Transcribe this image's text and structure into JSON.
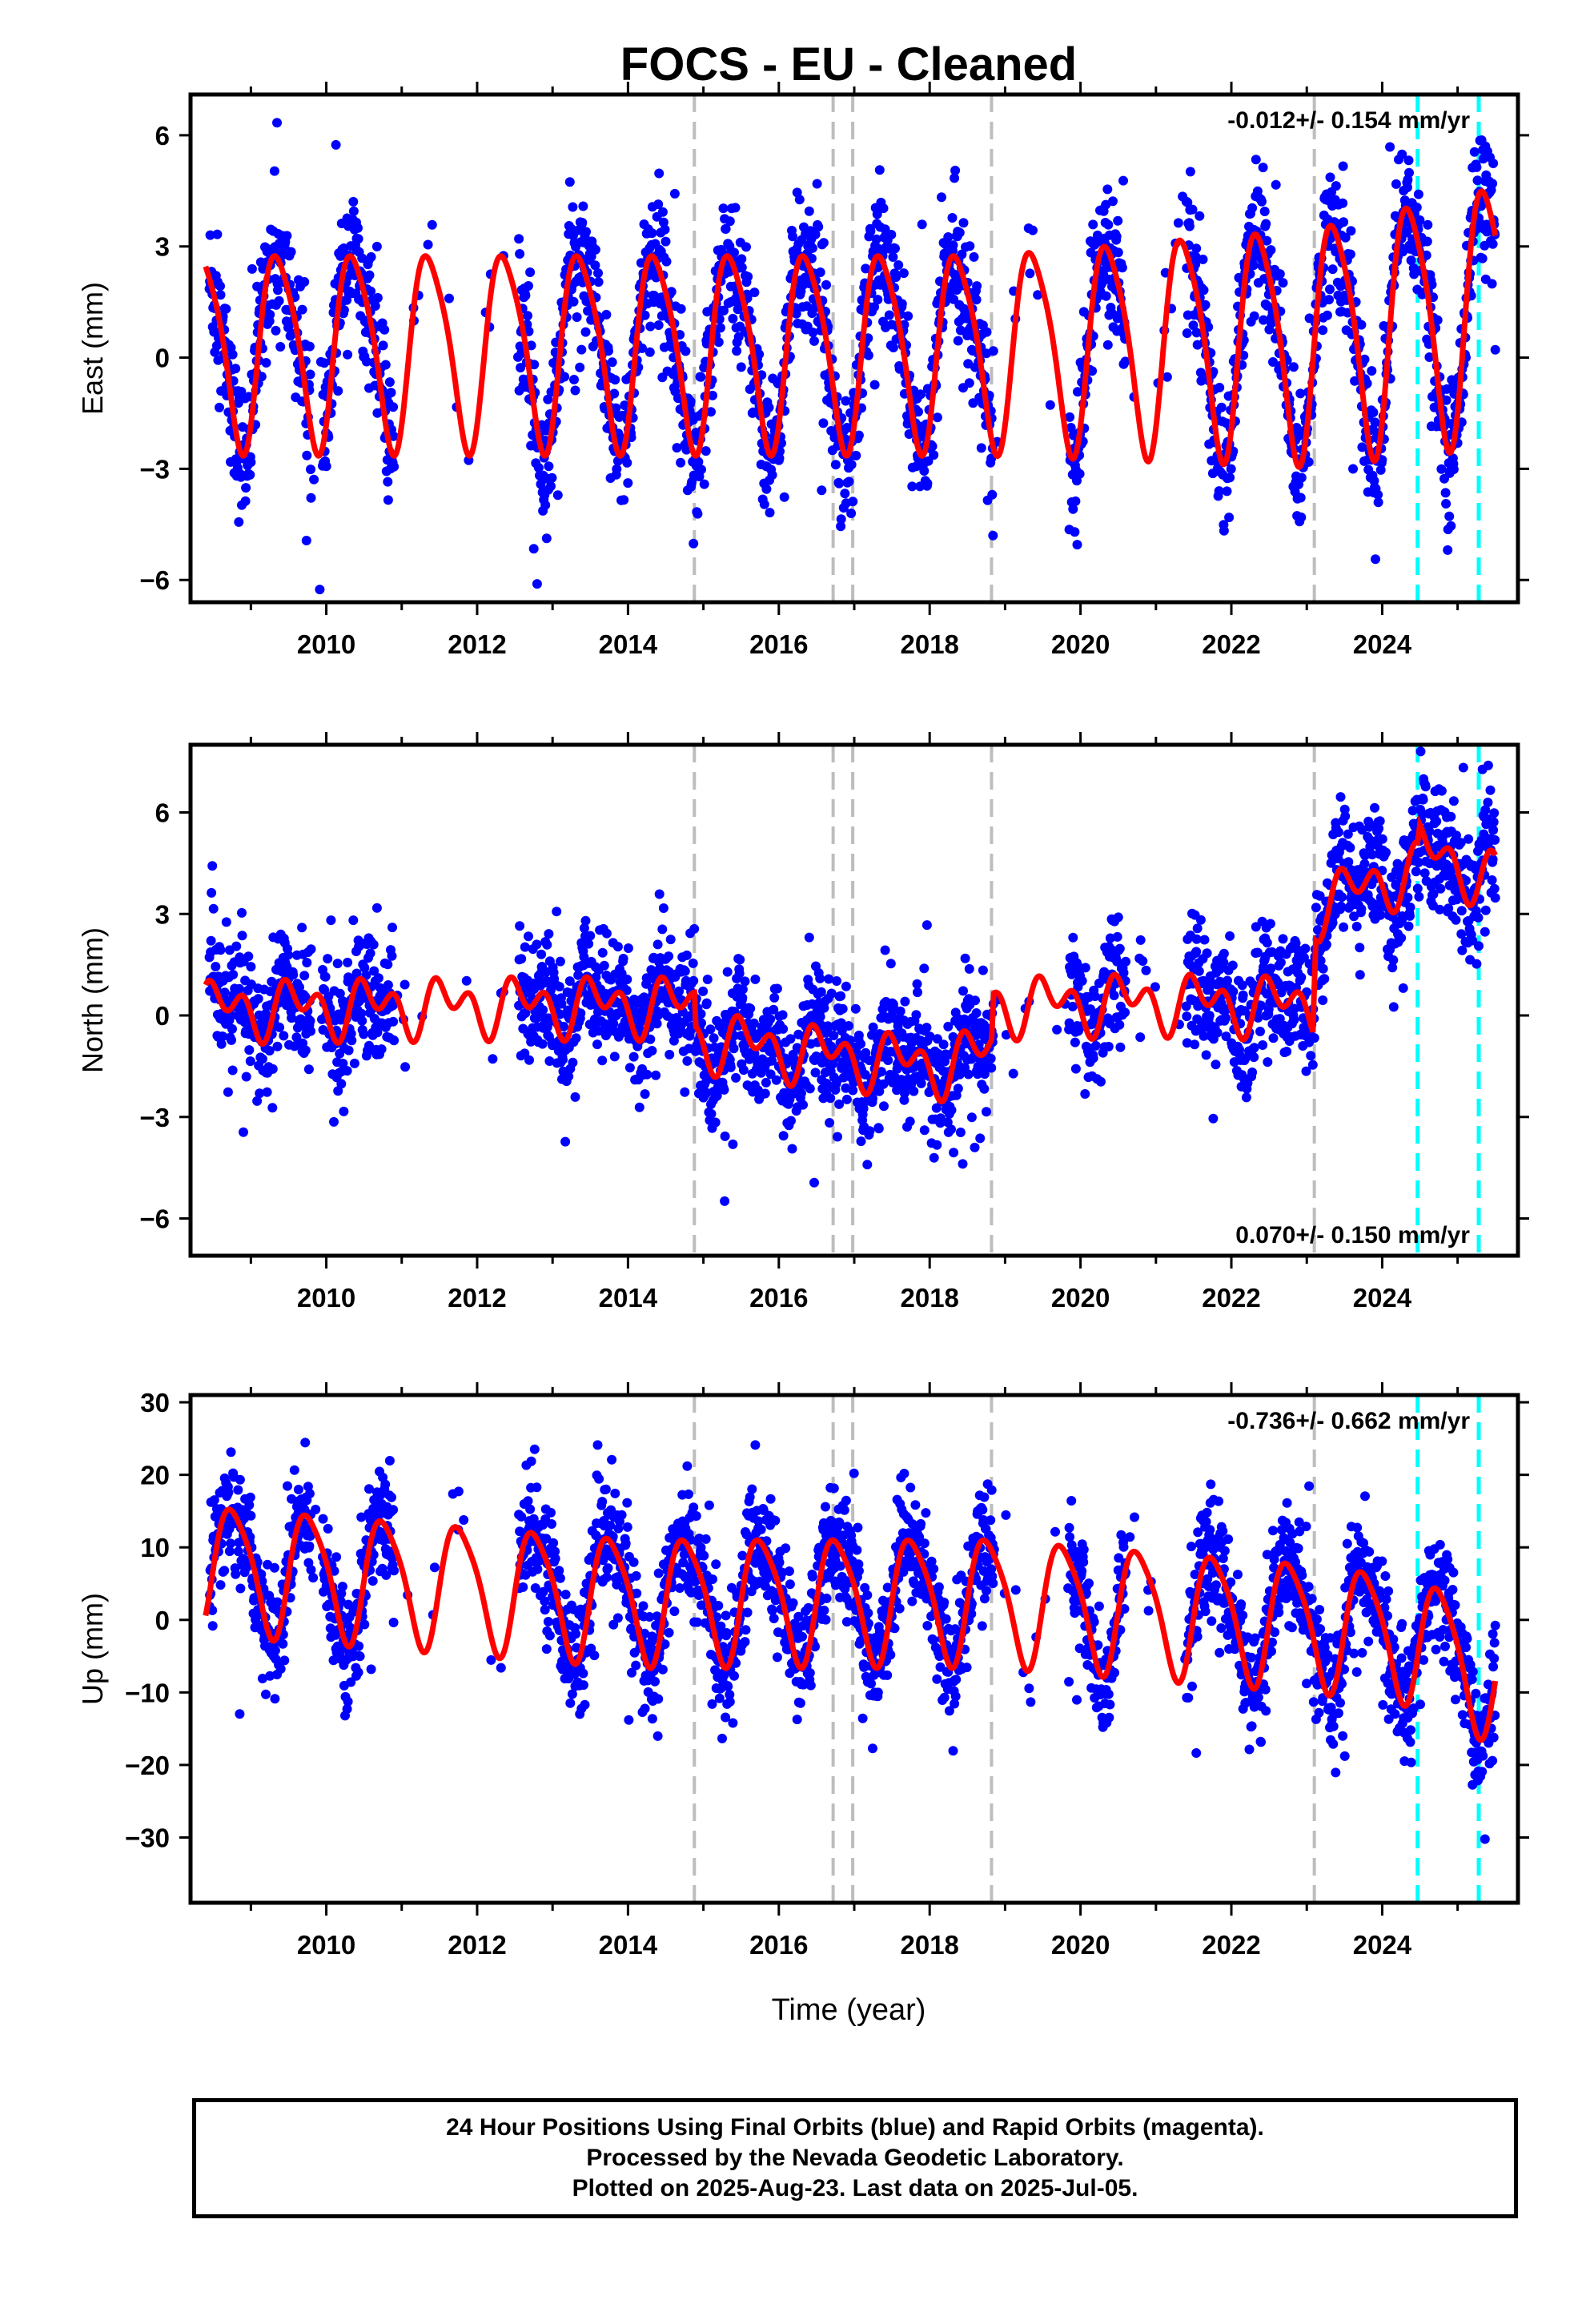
{
  "title": "FOCS  - EU - Cleaned",
  "xlabel": "Time (year)",
  "footer": {
    "line1": "24 Hour Positions Using Final Orbits (blue) and Rapid Orbits (magenta).",
    "line2": "Processed by the Nevada Geodetic Laboratory.",
    "line3": "Plotted on 2025-Aug-23. Last data on 2025-Jul-05."
  },
  "colors": {
    "data": "#0000ff",
    "model": "#ff0000",
    "equipment_change": "#bdbdbd",
    "earthquake": "#00ffff"
  },
  "chart_data": {
    "type": "scatter",
    "x_ticks": [
      2010,
      2012,
      2014,
      2016,
      2018,
      2020,
      2022,
      2024
    ],
    "xlim": [
      2008.2,
      2025.8
    ],
    "equipment_change_lines": [
      2014.88,
      2016.72,
      2016.98,
      2018.82,
      2023.1
    ],
    "earthquake_lines": [
      2024.47,
      2025.28
    ],
    "panels": [
      {
        "ylabel": "East (mm)",
        "ylim": [
          -6.6,
          7.1
        ],
        "y_ticks": [
          6,
          3,
          0,
          -3,
          -6
        ],
        "rate_label": "-0.012+/- 0.154 mm/yr",
        "rate_pos": "top-right",
        "model": {
          "amp_annual": 2.6,
          "amp_semi": 0.45,
          "phase": 0.12,
          "offsets": [
            [
              2018.85,
              0.0
            ]
          ],
          "trend": [
            [
              2008.4,
              0.3
            ],
            [
              2018.8,
              0.3
            ],
            [
              2023.1,
              0.55
            ],
            [
              2025.5,
              1.4
            ]
          ],
          "amp_growth": [
            [
              2008.4,
              1.0
            ],
            [
              2018.8,
              1.0
            ],
            [
              2025.5,
              1.3
            ]
          ]
        },
        "data": {
          "noise": 0.9,
          "spread": 1.3
        }
      },
      {
        "ylabel": "North (mm)",
        "ylim": [
          -7.1,
          8.0
        ],
        "y_ticks": [
          6,
          3,
          0,
          -3,
          -6
        ],
        "rate_label": "0.070+/- 0.150 mm/yr",
        "rate_pos": "bottom-right",
        "model": {
          "amp_annual": 0.55,
          "amp_semi": 0.55,
          "phase": 0.35,
          "trend": [
            [
              2008.4,
              0.2
            ],
            [
              2012.5,
              0.3
            ],
            [
              2014.88,
              0.3
            ],
            [
              2014.9,
              -0.7
            ],
            [
              2016.8,
              -1.2
            ],
            [
              2018.2,
              -1.5
            ],
            [
              2018.82,
              -1.0
            ],
            [
              2018.85,
              0.3
            ],
            [
              2021.0,
              0.4
            ],
            [
              2023.08,
              0.3
            ],
            [
              2023.12,
              3.2
            ],
            [
              2024.0,
              4.0
            ],
            [
              2024.47,
              4.3
            ],
            [
              2024.5,
              4.9
            ],
            [
              2025.5,
              4.0
            ]
          ]
        },
        "data": {
          "noise": 0.9,
          "spread": 1.1
        }
      },
      {
        "ylabel": "Up (mm)",
        "ylim": [
          -39,
          31
        ],
        "y_ticks": [
          30,
          20,
          10,
          0,
          -10,
          -20,
          -30
        ],
        "rate_label": "-0.736+/- 0.662 mm/yr",
        "rate_pos": "top-right",
        "model": {
          "amp_annual": 8.5,
          "amp_semi": 1.5,
          "phase": 0.52,
          "trend": [
            [
              2008.4,
              7.5
            ],
            [
              2014.0,
              3.0
            ],
            [
              2018.8,
              3.0
            ],
            [
              2023.1,
              -0.5
            ],
            [
              2024.5,
              -2.5
            ],
            [
              2025.5,
              -8.0
            ]
          ]
        },
        "data": {
          "noise": 4.0,
          "spread": 5.0
        }
      }
    ],
    "data_gaps": [
      [
        2009.8,
        2009.95
      ],
      [
        2010.9,
        2012.55
      ],
      [
        2018.85,
        2019.85
      ],
      [
        2020.6,
        2021.4
      ]
    ]
  }
}
